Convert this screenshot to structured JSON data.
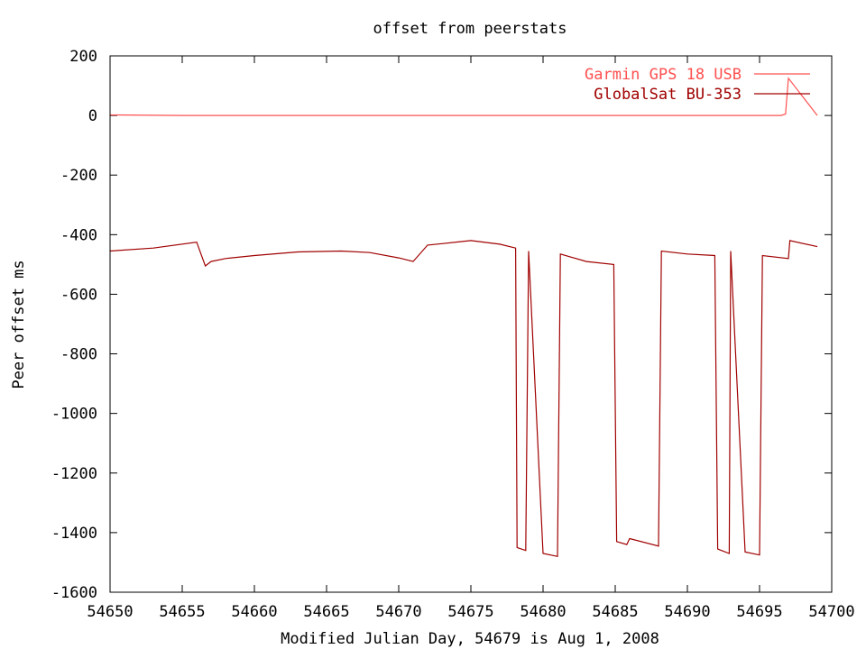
{
  "chart_data": {
    "type": "line",
    "title": "offset from peerstats",
    "xlabel": "Modified Julian Day, 54679 is Aug 1, 2008",
    "ylabel": "Peer offset ms",
    "xlim": [
      54650,
      54700
    ],
    "ylim": [
      -1600,
      200
    ],
    "x_ticks": [
      "54650",
      "54655",
      "54660",
      "54665",
      "54670",
      "54675",
      "54680",
      "54685",
      "54690",
      "54695",
      "54700"
    ],
    "y_ticks": [
      "200",
      "0",
      "-200",
      "-400",
      "-600",
      "-800",
      "-1000",
      "-1200",
      "-1400",
      "-1600"
    ],
    "grid": false,
    "legend_position": "top-right",
    "series": [
      {
        "name": "Garmin GPS 18 USB",
        "color": "#ff5050",
        "x": [
          54650,
          54655,
          54660,
          54665,
          54670,
          54675,
          54680,
          54685,
          54690,
          54695,
          54696.5,
          54696.8,
          54697,
          54699
        ],
        "y": [
          2,
          0,
          0,
          0,
          0,
          0,
          0,
          0,
          0,
          0,
          0,
          5,
          125,
          0
        ]
      },
      {
        "name": "GlobalSat BU-353",
        "color": "#a00000",
        "x": [
          54650,
          54653,
          54656,
          54656.6,
          54657,
          54658,
          54660,
          54663,
          54666,
          54668,
          54670,
          54671,
          54672,
          54673,
          54675,
          54677,
          54678.1,
          54678.2,
          54678.8,
          54679,
          54680,
          54681,
          54681.2,
          54683,
          54684.9,
          54685.1,
          54685.8,
          54686,
          54688,
          54688.2,
          54690,
          54691.9,
          54692.1,
          54692.9,
          54693,
          54694,
          54695,
          54695.2,
          54697,
          54697.1,
          54699
        ],
        "y": [
          -455,
          -445,
          -425,
          -505,
          -490,
          -480,
          -470,
          -458,
          -455,
          -460,
          -478,
          -490,
          -435,
          -430,
          -420,
          -432,
          -445,
          -1450,
          -1460,
          -455,
          -1470,
          -1480,
          -465,
          -490,
          -500,
          -1430,
          -1440,
          -1420,
          -1445,
          -455,
          -465,
          -470,
          -1455,
          -1470,
          -455,
          -1465,
          -1475,
          -470,
          -480,
          -420,
          -440
        ]
      }
    ]
  }
}
